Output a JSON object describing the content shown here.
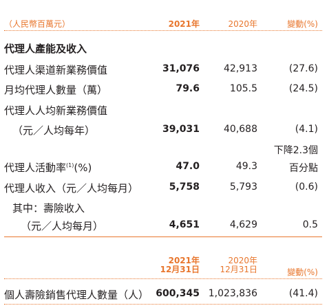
{
  "header": {
    "unit": "（人民幣百萬元）",
    "col_2021": "2021年",
    "col_2020": "2020年",
    "col_change": "變動(%)"
  },
  "section": {
    "title": "代理人產能及收入"
  },
  "rows": [
    {
      "label": "代理人渠道新業務價值",
      "v2021": "31,076",
      "v2020": "42,913",
      "change": "(27.6)"
    },
    {
      "label": "月均代理人數量（萬）",
      "v2021": "79.6",
      "v2020": "105.5",
      "change": "(24.5)"
    },
    {
      "label": "代理人人均新業務價值",
      "label2": "（元／人均每年）",
      "v2021": "39,031",
      "v2020": "40,688",
      "change": "(4.1)"
    },
    {
      "label": "代理人活動率",
      "label_sup": "(1)",
      "label_tail": "(%)",
      "v2021": "47.0",
      "v2020": "49.3",
      "change_line1": "下降2.3個",
      "change_line2": "百分點"
    },
    {
      "label": "代理人收入（元／人均每月）",
      "v2021": "5,758",
      "v2020": "5,793",
      "change": "(0.6)"
    },
    {
      "label": "其中：壽險收入",
      "label2": "（元／人均每月）",
      "v2021": "4,651",
      "v2020": "4,629",
      "change": "0.5"
    }
  ],
  "table2": {
    "header": {
      "col_2021_line1": "2021年",
      "col_2021_line2": "12月31日",
      "col_2020_line1": "2020年",
      "col_2020_line2": "12月31日",
      "col_change": "變動(%)"
    },
    "row": {
      "label": "個人壽險銷售代理人數量（人）",
      "v2021": "600,345",
      "v2020": "1,023,836",
      "change": "(41.4)"
    }
  },
  "colors": {
    "accent": "#e8762d",
    "text": "#231f20"
  }
}
